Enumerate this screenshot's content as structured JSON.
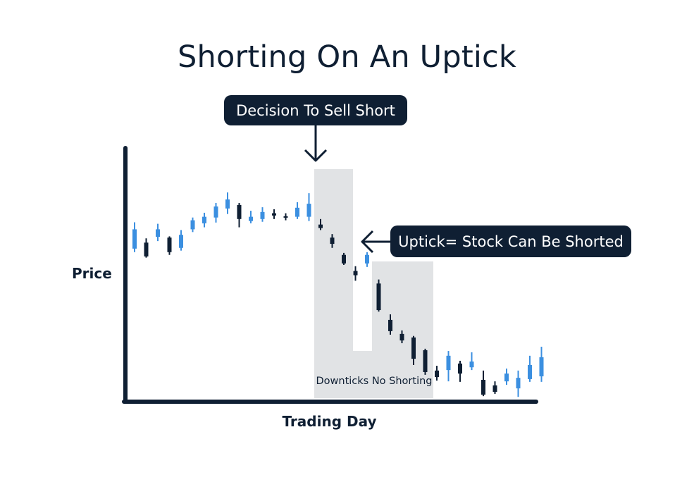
{
  "title": "Shorting On An Uptick",
  "callouts": {
    "decision": "Decision To Sell Short",
    "uptick": "Uptick= Stock Can Be Shorted"
  },
  "chart_data": {
    "type": "candlestick",
    "title": "Shorting On An Uptick",
    "xlabel": "Trading Day",
    "ylabel": "Price",
    "ylim": [
      0,
      100
    ],
    "grid": false,
    "legend": "none",
    "colors": {
      "up": "#3b8fe0",
      "down": "#0f1f33",
      "zone": "#e1e3e5",
      "axis": "#0f1f33"
    },
    "annotations": [
      {
        "text": "Decision To Sell Short",
        "points_to_index": 16
      },
      {
        "text": "Uptick= Stock Can Be Shorted",
        "points_to_index": 20
      },
      {
        "text": "Downticks No Shorting",
        "zone": true
      }
    ],
    "candles": [
      {
        "dir": "up",
        "o": 65.5,
        "c": 73.2,
        "h": 76.0,
        "l": 64.1
      },
      {
        "dir": "down",
        "o": 67.9,
        "c": 62.4,
        "h": 69.6,
        "l": 61.9
      },
      {
        "dir": "up",
        "o": 70.2,
        "c": 73.2,
        "h": 75.4,
        "l": 68.5
      },
      {
        "dir": "down",
        "o": 69.9,
        "c": 64.1,
        "h": 70.4,
        "l": 63.0
      },
      {
        "dir": "up",
        "o": 65.8,
        "c": 71.0,
        "h": 72.9,
        "l": 64.7
      },
      {
        "dir": "up",
        "o": 73.2,
        "c": 76.8,
        "h": 77.9,
        "l": 72.1
      },
      {
        "dir": "up",
        "o": 75.6,
        "c": 78.2,
        "h": 79.8,
        "l": 74.0
      },
      {
        "dir": "up",
        "o": 77.9,
        "c": 82.3,
        "h": 83.7,
        "l": 75.9
      },
      {
        "dir": "up",
        "o": 81.5,
        "c": 85.1,
        "h": 87.9,
        "l": 79.3
      },
      {
        "dir": "down",
        "o": 82.9,
        "c": 77.3,
        "h": 83.7,
        "l": 74.0
      },
      {
        "dir": "up",
        "o": 76.5,
        "c": 78.2,
        "h": 80.6,
        "l": 75.6
      },
      {
        "dir": "up",
        "o": 77.3,
        "c": 80.1,
        "h": 82.0,
        "l": 76.2
      },
      {
        "dir": "down",
        "o": 79.6,
        "c": 78.7,
        "h": 81.2,
        "l": 77.3
      },
      {
        "dir": "down",
        "o": 78.4,
        "c": 77.9,
        "h": 79.6,
        "l": 76.8
      },
      {
        "dir": "up",
        "o": 78.2,
        "c": 81.8,
        "h": 84.0,
        "l": 77.3
      },
      {
        "dir": "up",
        "o": 78.2,
        "c": 83.4,
        "h": 87.6,
        "l": 76.5
      },
      {
        "dir": "down",
        "o": 75.1,
        "c": 73.7,
        "h": 77.3,
        "l": 72.9
      },
      {
        "dir": "down",
        "o": 69.9,
        "c": 67.4,
        "h": 71.3,
        "l": 65.8
      },
      {
        "dir": "down",
        "o": 63.0,
        "c": 59.6,
        "h": 63.8,
        "l": 59.0
      },
      {
        "dir": "down",
        "o": 56.6,
        "c": 54.9,
        "h": 58.5,
        "l": 52.7
      },
      {
        "dir": "up",
        "o": 59.6,
        "c": 63.0,
        "h": 64.1,
        "l": 58.2
      },
      {
        "dir": "down",
        "o": 51.6,
        "c": 41.0,
        "h": 53.2,
        "l": 40.4
      },
      {
        "dir": "down",
        "o": 37.1,
        "c": 32.6,
        "h": 39.3,
        "l": 31.2
      },
      {
        "dir": "down",
        "o": 31.5,
        "c": 28.9,
        "h": 32.9,
        "l": 27.8
      },
      {
        "dir": "down",
        "o": 30.1,
        "c": 21.6,
        "h": 30.7,
        "l": 19.1
      },
      {
        "dir": "down",
        "o": 25.0,
        "c": 16.3,
        "h": 25.6,
        "l": 15.2
      },
      {
        "dir": "down",
        "o": 16.9,
        "c": 14.3,
        "h": 18.8,
        "l": 12.9
      },
      {
        "dir": "up",
        "o": 17.1,
        "c": 22.8,
        "h": 24.7,
        "l": 12.6
      },
      {
        "dir": "down",
        "o": 19.7,
        "c": 15.7,
        "h": 20.8,
        "l": 12.4
      },
      {
        "dir": "up",
        "o": 18.2,
        "c": 20.5,
        "h": 24.2,
        "l": 17.1
      },
      {
        "dir": "down",
        "o": 13.2,
        "c": 7.3,
        "h": 16.9,
        "l": 6.7
      },
      {
        "dir": "down",
        "o": 11.0,
        "c": 8.4,
        "h": 12.6,
        "l": 7.6
      },
      {
        "dir": "up",
        "o": 12.6,
        "c": 15.7,
        "h": 17.7,
        "l": 11.2
      },
      {
        "dir": "up",
        "o": 9.8,
        "c": 14.0,
        "h": 16.9,
        "l": 6.4
      },
      {
        "dir": "up",
        "o": 13.5,
        "c": 19.1,
        "h": 22.8,
        "l": 12.4
      },
      {
        "dir": "up",
        "o": 14.6,
        "c": 22.2,
        "h": 26.4,
        "l": 12.4
      }
    ]
  }
}
